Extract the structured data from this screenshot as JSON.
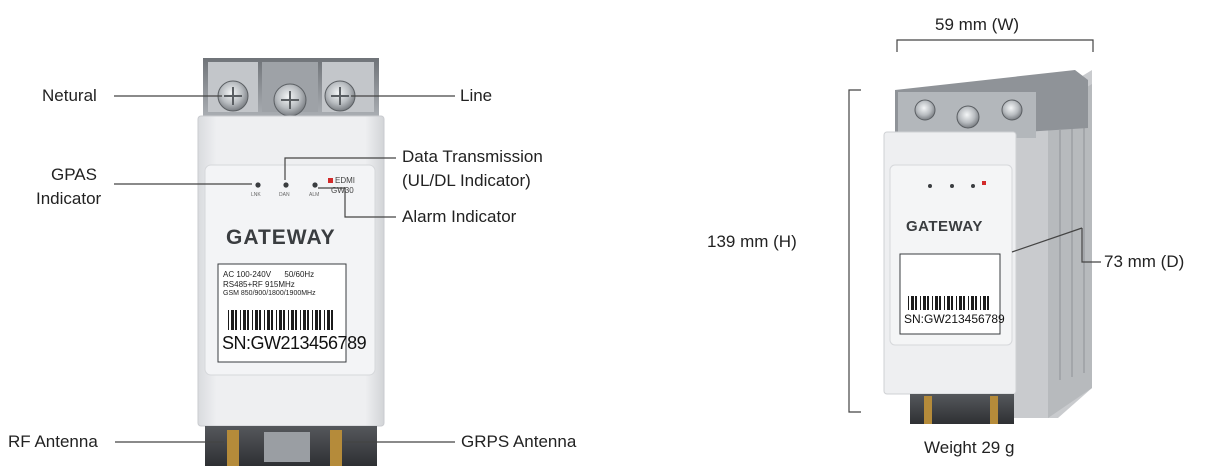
{
  "front_view": {
    "labels": {
      "neutral": "Netural",
      "line": "Line",
      "gpas_line1": "GPAS",
      "gpas_line2": "Indicator",
      "data_tx_line1": "Data Transmission",
      "data_tx_line2": "(UL/DL Indicator)",
      "alarm": "Alarm Indicator",
      "rf_antenna": "RF Antenna",
      "grps_antenna": "GRPS Antenna"
    },
    "device": {
      "brand": "GATEWAY",
      "model_line1": "EDMI",
      "model_line2": "GW30",
      "led_labels": [
        "LNK",
        "DAN",
        "ALM"
      ],
      "spec_line1": "AC 100-240V      50/60Hz",
      "spec_line2": "RS485+RF 915MHz",
      "spec_line3": "GSM 850/900/1800/1900MHz",
      "serial": "SN:GW213456789"
    }
  },
  "side_view": {
    "width": "59 mm (W)",
    "height": "139 mm (H)",
    "depth": "73 mm (D)",
    "weight": "Weight 29 g",
    "device": {
      "brand": "GATEWAY",
      "serial": "SN:GW213456789"
    }
  },
  "colors": {
    "housing": "#e9eaec",
    "terminal": "#8d9196",
    "led_red": "#d22a2a",
    "leader": "#444444"
  }
}
